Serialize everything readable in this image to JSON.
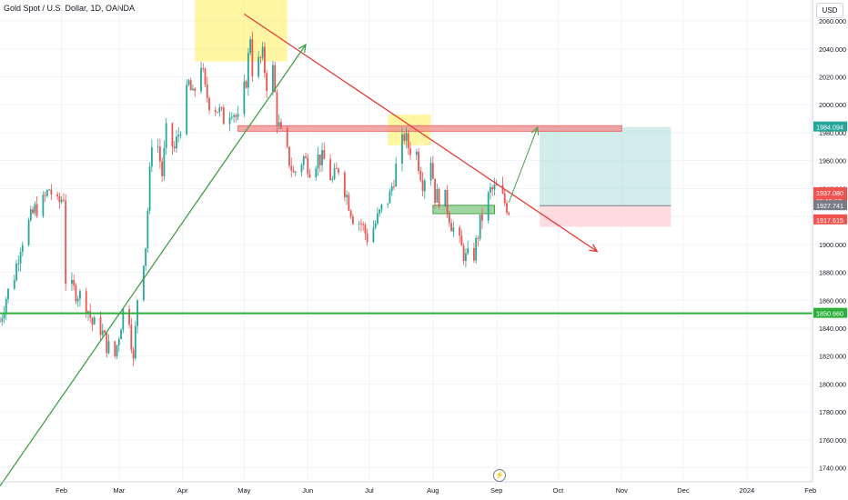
{
  "header": {
    "symbol_title": "Gold Spot / U.S. Dollar, 1D, OANDA"
  },
  "toolbar": {
    "currency_label": "USD"
  },
  "icons": {
    "events": "lightning-icon"
  },
  "colors": {
    "up": "#26a69a",
    "down": "#ef5350",
    "grid": "#f0f3fa",
    "support": "#2db03a",
    "trend_down": "#e53935",
    "trend_up": "#43a047",
    "highlight": "#ffee58",
    "resistance": "#f28b8b",
    "demand": "#81c784",
    "target_zone": "#b2dfdb",
    "stop_zone": "#ffcdd2",
    "axis_text": "#131722"
  },
  "chart_data": {
    "type": "candlestick",
    "title": "Gold Spot / U.S. Dollar, 1D, OANDA",
    "ylim": [
      1730,
      2075
    ],
    "y_ticks": [
      1740,
      1760,
      1780,
      1800,
      1820,
      1840,
      1860,
      1880,
      1900,
      1920,
      1940,
      1960,
      1980,
      2000,
      2020,
      2040,
      2060
    ],
    "y_tick_labels": [
      "1740.000",
      "1760.000",
      "1780.000",
      "1800.000",
      "1820.000",
      "1840.000",
      "1860.000",
      "1880.000",
      "1900.000",
      "1920.000",
      "1940.000",
      "1960.000",
      "1980.000",
      "2000.000",
      "2020.000",
      "2040.000",
      "2060.000"
    ],
    "x_ticks": [
      {
        "label": "Feb",
        "date": "2023-02-01"
      },
      {
        "label": "Mar",
        "date": "2023-03-01"
      },
      {
        "label": "Apr",
        "date": "2023-04-01"
      },
      {
        "label": "May",
        "date": "2023-05-01"
      },
      {
        "label": "Jun",
        "date": "2023-06-01"
      },
      {
        "label": "Jul",
        "date": "2023-07-01"
      },
      {
        "label": "Aug",
        "date": "2023-08-01"
      },
      {
        "label": "Sep",
        "date": "2023-09-01"
      },
      {
        "label": "Oct",
        "date": "2023-10-01"
      },
      {
        "label": "Nov",
        "date": "2023-11-01"
      },
      {
        "label": "Dec",
        "date": "2023-12-01"
      },
      {
        "label": "2024",
        "date": "2024-01-01"
      },
      {
        "label": "Feb",
        "date": "2024-02-01"
      }
    ],
    "xlim": [
      "2023-01-02",
      "2024-02-02"
    ],
    "close_path": [
      [
        "2023-01-02",
        1845
      ],
      [
        "2023-01-05",
        1862
      ],
      [
        "2023-01-09",
        1878
      ],
      [
        "2023-01-12",
        1900
      ],
      [
        "2023-01-16",
        1915
      ],
      [
        "2023-01-19",
        1925
      ],
      [
        "2023-01-23",
        1930
      ],
      [
        "2023-01-26",
        1940
      ],
      [
        "2023-01-30",
        1928
      ],
      [
        "2023-02-02",
        1935
      ],
      [
        "2023-02-03",
        1875
      ],
      [
        "2023-02-06",
        1868
      ],
      [
        "2023-02-09",
        1865
      ],
      [
        "2023-02-13",
        1858
      ],
      [
        "2023-02-16",
        1843
      ],
      [
        "2023-02-20",
        1840
      ],
      [
        "2023-02-23",
        1828
      ],
      [
        "2023-02-27",
        1820
      ],
      [
        "2023-03-01",
        1836
      ],
      [
        "2023-03-03",
        1852
      ],
      [
        "2023-03-06",
        1848
      ],
      [
        "2023-03-08",
        1815
      ],
      [
        "2023-03-10",
        1862
      ],
      [
        "2023-03-14",
        1900
      ],
      [
        "2023-03-17",
        1975
      ],
      [
        "2023-03-20",
        1970
      ],
      [
        "2023-03-22",
        1950
      ],
      [
        "2023-03-24",
        1980
      ],
      [
        "2023-03-28",
        1968
      ],
      [
        "2023-03-31",
        1985
      ],
      [
        "2023-04-04",
        2015
      ],
      [
        "2023-04-06",
        2005
      ],
      [
        "2023-04-10",
        2030
      ],
      [
        "2023-04-12",
        2010
      ],
      [
        "2023-04-14",
        2002
      ],
      [
        "2023-04-18",
        1997
      ],
      [
        "2023-04-21",
        1990
      ],
      [
        "2023-04-25",
        1998
      ],
      [
        "2023-04-28",
        1988
      ],
      [
        "2023-05-02",
        2018
      ],
      [
        "2023-05-04",
        2050
      ],
      [
        "2023-05-05",
        2025
      ],
      [
        "2023-05-08",
        2030
      ],
      [
        "2023-05-10",
        2035
      ],
      [
        "2023-05-12",
        2015
      ],
      [
        "2023-05-15",
        2025
      ],
      [
        "2023-05-17",
        1990
      ],
      [
        "2023-05-19",
        1978
      ],
      [
        "2023-05-23",
        1960
      ],
      [
        "2023-05-25",
        1950
      ],
      [
        "2023-05-30",
        1962
      ],
      [
        "2023-06-02",
        1955
      ],
      [
        "2023-06-06",
        1962
      ],
      [
        "2023-06-09",
        1960
      ],
      [
        "2023-06-13",
        1945
      ],
      [
        "2023-06-16",
        1955
      ],
      [
        "2023-06-20",
        1935
      ],
      [
        "2023-06-23",
        1920
      ],
      [
        "2023-06-27",
        1915
      ],
      [
        "2023-06-30",
        1905
      ],
      [
        "2023-07-04",
        1915
      ],
      [
        "2023-07-07",
        1925
      ],
      [
        "2023-07-11",
        1935
      ],
      [
        "2023-07-14",
        1955
      ],
      [
        "2023-07-18",
        1978
      ],
      [
        "2023-07-20",
        1970
      ],
      [
        "2023-07-24",
        1965
      ],
      [
        "2023-07-27",
        1945
      ],
      [
        "2023-07-31",
        1962
      ],
      [
        "2023-08-02",
        1935
      ],
      [
        "2023-08-07",
        1932
      ],
      [
        "2023-08-10",
        1915
      ],
      [
        "2023-08-14",
        1900
      ],
      [
        "2023-08-17",
        1890
      ],
      [
        "2023-08-21",
        1893
      ],
      [
        "2023-08-24",
        1915
      ],
      [
        "2023-08-29",
        1938
      ],
      [
        "2023-09-01",
        1940
      ],
      [
        "2023-09-05",
        1930
      ],
      [
        "2023-09-07",
        1925
      ]
    ],
    "levels": [
      {
        "name": "support-line",
        "price": 1850.66
      },
      {
        "name": "resistance-zone",
        "low": 1981,
        "high": 1985
      }
    ],
    "price_labels": [
      {
        "text": "1984.094",
        "value": 1984.094,
        "bg": "#26a69a",
        "fg": "#ffffff"
      },
      {
        "text": "1937.080",
        "value": 1937.08,
        "bg": "#ef5350",
        "fg": "#ffffff"
      },
      {
        "text": "15:15:52",
        "value": 1931,
        "bg": "#ef5350",
        "fg": "#ffffff"
      },
      {
        "text": "1927.741",
        "value": 1927.741,
        "bg": "#787b86",
        "fg": "#ffffff"
      },
      {
        "text": "1917.615",
        "value": 1917.615,
        "bg": "#ef5350",
        "fg": "#ffffff"
      },
      {
        "text": "1850.660",
        "value": 1850.66,
        "bg": "#2db03a",
        "fg": "#ffffff"
      }
    ],
    "annotations": {
      "trend_down": {
        "from": [
          "2023-05-01",
          2065
        ],
        "to": [
          "2023-10-20",
          1895
        ]
      },
      "trend_up": {
        "from": [
          "2023-01-02",
          1727
        ],
        "to": [
          "2023-05-31",
          2043
        ]
      },
      "highlight_boxes": [
        {
          "from": "2023-04-07",
          "to": "2023-05-22",
          "low": 2031,
          "high": 2075
        },
        {
          "from": "2023-07-10",
          "to": "2023-07-31",
          "low": 1971,
          "high": 1993
        }
      ],
      "resistance_box": {
        "from": "2023-04-28",
        "to": "2023-11-01",
        "low": 1981,
        "high": 1985
      },
      "demand_box": {
        "from": "2023-08-01",
        "to": "2023-08-31",
        "low": 1922,
        "high": 1928
      },
      "projection_arrow": {
        "from": [
          "2023-09-07",
          1930
        ],
        "to": [
          "2023-09-21",
          1984
        ]
      },
      "long_position": {
        "from": "2023-09-22",
        "to": "2023-11-25",
        "entry": 1927.741,
        "target": 1984.094,
        "stop": 1917.615
      }
    },
    "grid": true
  }
}
